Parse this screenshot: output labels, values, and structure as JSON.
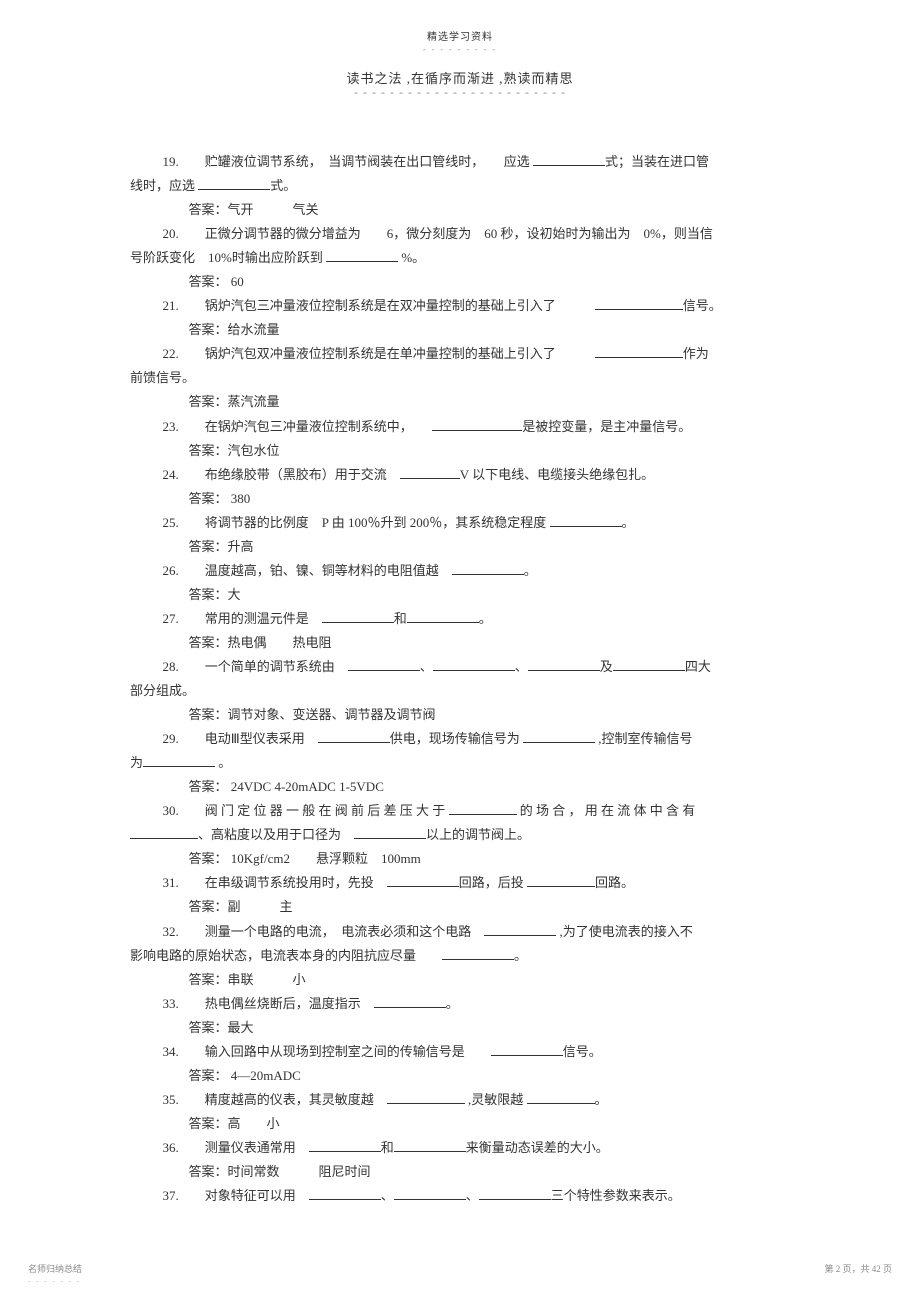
{
  "header": {
    "top": "精选学习资料",
    "sub": "- - - - - - - - -",
    "title": "读书之法 ,在循序而渐进 ,熟读而精思",
    "underline": "- - - - - - - - - - - - - - - - - - - - - - - -"
  },
  "questions": [
    {
      "num": "19.",
      "text_parts": [
        "　　贮罐液位调节系统，　当调节阀装在出口管线时，　　应选 ",
        "式；当装在进口管"
      ],
      "cont": [
        "线时，应选 ",
        "式。"
      ],
      "blanks": [
        72,
        72
      ],
      "answer": "答案：气开　　　气关"
    },
    {
      "num": "20.",
      "text_parts": [
        "　　正微分调节器的微分增益为　　6，微分刻度为　60 秒，设初始时为输出为　0%，则当信"
      ],
      "cont": [
        "号阶跃变化　10%时输出应阶跃到 ",
        " %。"
      ],
      "blanks": [
        72
      ],
      "answer": "答案： 60"
    },
    {
      "num": "21.",
      "text_parts": [
        "　　锅炉汽包三冲量液位控制系统是在双冲量控制的基础上引入了　　　",
        "信号。"
      ],
      "blanks": [
        88
      ],
      "answer": "答案：给水流量"
    },
    {
      "num": "22.",
      "text_parts": [
        "　　锅炉汽包双冲量液位控制系统是在单冲量控制的基础上引入了　　　",
        "作为"
      ],
      "cont": [
        "前馈信号。"
      ],
      "blanks": [
        88
      ],
      "answer": "答案：蒸汽流量"
    },
    {
      "num": "23.",
      "text_parts": [
        "　　在锅炉汽包三冲量液位控制系统中，　　",
        "是被控变量，是主冲量信号。"
      ],
      "blanks": [
        90
      ],
      "answer": "答案：汽包水位"
    },
    {
      "num": "24.",
      "text_parts": [
        "　　布绝缘胶带（黑胶布）用于交流　",
        "V 以下电线、电缆接头绝缘包扎。"
      ],
      "blanks": [
        60
      ],
      "answer": "答案： 380"
    },
    {
      "num": "25.",
      "text_parts": [
        "　　将调节器的比例度　P 由 100％升到 200％，其系统稳定程度 ",
        "。"
      ],
      "blanks": [
        72
      ],
      "answer": "答案：升高"
    },
    {
      "num": "26.",
      "text_parts": [
        "　　温度越高，铂、镍、铜等材料的电阻值越　",
        "。"
      ],
      "blanks": [
        72
      ],
      "answer": "答案：大"
    },
    {
      "num": "27.",
      "text_parts": [
        "　　常用的测温元件是　",
        "和",
        "。"
      ],
      "blanks": [
        72,
        72
      ],
      "answer": "答案：热电偶　　热电阻"
    },
    {
      "num": "28.",
      "text_parts": [
        "　　一个简单的调节系统由　",
        "、",
        "、",
        "及",
        "四大"
      ],
      "cont": [
        "部分组成。"
      ],
      "blanks": [
        72,
        82,
        72,
        72
      ],
      "answer": "答案：调节对象、变送器、调节器及调节阀"
    },
    {
      "num": "29.",
      "text_parts": [
        "　　电动Ⅲ型仪表采用　",
        "供电，现场传输信号为 ",
        " ,控制室传输信号"
      ],
      "cont": [
        "为",
        " 。"
      ],
      "blanks": [
        72,
        72,
        72
      ],
      "answer": "答案： 24VDC 4-20mADC 1-5VDC"
    },
    {
      "num": "30.",
      "text_parts": [
        "　　阀 门 定 位 器 一 般 在 阀 前 后 差 压 大 于 ",
        " 的 场 合 ， 用 在 流 体 中 含 有"
      ],
      "cont": [
        "",
        "、高粘度以及用于口径为　",
        "以上的调节阀上。"
      ],
      "blanks": [
        68,
        68,
        72
      ],
      "answer": "答案： 10Kgf/cm2　　悬浮颗粒　100mm"
    },
    {
      "num": "31.",
      "text_parts": [
        "　　在串级调节系统投用时，先投　",
        "回路，后投 ",
        "回路。"
      ],
      "blanks": [
        72,
        68
      ],
      "answer": "答案：副　　　主"
    },
    {
      "num": "32.",
      "text_parts": [
        "　　测量一个电路的电流，　电流表必须和这个电路　",
        " ,为了使电流表的接入不"
      ],
      "cont": [
        "影响电路的原始状态，电流表本身的内阻抗应尽量　　",
        "。"
      ],
      "blanks": [
        72,
        72
      ],
      "answer": "答案：串联　　　小"
    },
    {
      "num": "33.",
      "text_parts": [
        "　　热电偶丝烧断后，温度指示　",
        "。"
      ],
      "blanks": [
        72
      ],
      "answer": "答案：最大"
    },
    {
      "num": "34.",
      "text_parts": [
        "　　输入回路中从现场到控制室之间的传输信号是　　",
        "信号。"
      ],
      "blanks": [
        72
      ],
      "answer": "答案： 4—20mADC"
    },
    {
      "num": "35.",
      "text_parts": [
        "　　精度越高的仪表，其灵敏度越　",
        " ,灵敏限越 ",
        "。"
      ],
      "blanks": [
        78,
        68
      ],
      "answer": "答案：高　　小"
    },
    {
      "num": "36.",
      "text_parts": [
        "　　测量仪表通常用　",
        "和",
        "来衡量动态误差的大小。"
      ],
      "blanks": [
        72,
        72
      ],
      "answer": "答案：时间常数　　　阻尼时间"
    },
    {
      "num": "37.",
      "text_parts": [
        "　　对象特征可以用　",
        "、",
        "、",
        "三个特性参数来表示。"
      ],
      "blanks": [
        72,
        72,
        72
      ],
      "answer": ""
    }
  ],
  "footer": {
    "left": "名师归纳总结",
    "leftSub": "- - - - - - -",
    "right": "第 2 页，共 42 页"
  }
}
